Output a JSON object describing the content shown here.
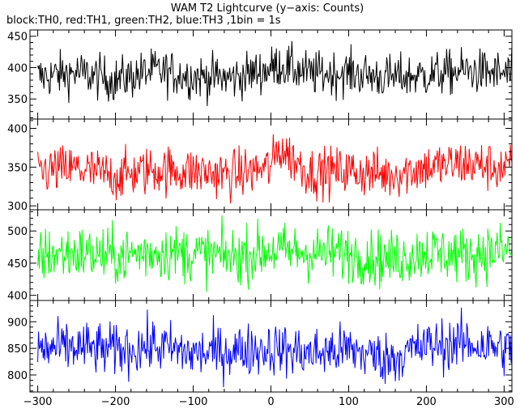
{
  "chart_data": {
    "type": "line",
    "title": "WAM T2 Lightcurve (y−axis: Counts)",
    "subtitle": "block:TH0, red:TH1, green:TH2, blue:TH3 ,1bin = 1s",
    "xlim": [
      -310,
      310
    ],
    "x_ticks": [
      -300,
      -200,
      -100,
      0,
      100,
      200,
      300
    ],
    "x_tick_labels": [
      "−300",
      "−200",
      "−100",
      "0",
      "100",
      "200",
      "300"
    ],
    "x_step": 1,
    "grid": false,
    "panels": [
      {
        "series": "TH0",
        "color": "#000000",
        "ylim": [
          318,
          460
        ],
        "y_ticks": [
          350,
          400,
          450
        ],
        "mean": 388,
        "spread": 18,
        "samples": [
          [
            -300,
            385
          ],
          [
            -250,
            392
          ],
          [
            -200,
            380
          ],
          [
            -150,
            395
          ],
          [
            -100,
            386
          ],
          [
            -50,
            383
          ],
          [
            0,
            398
          ],
          [
            10,
            405
          ],
          [
            50,
            390
          ],
          [
            100,
            392
          ],
          [
            150,
            384
          ],
          [
            200,
            388
          ],
          [
            250,
            395
          ],
          [
            300,
            390
          ]
        ]
      },
      {
        "series": "TH1",
        "color": "#ff0000",
        "ylim": [
          295,
          412
        ],
        "y_ticks": [
          300,
          350,
          400
        ],
        "mean": 345,
        "spread": 16,
        "samples": [
          [
            -300,
            345
          ],
          [
            -250,
            348
          ],
          [
            -200,
            338
          ],
          [
            -150,
            347
          ],
          [
            -100,
            344
          ],
          [
            -50,
            340
          ],
          [
            0,
            350
          ],
          [
            10,
            375
          ],
          [
            50,
            343
          ],
          [
            100,
            345
          ],
          [
            150,
            340
          ],
          [
            200,
            350
          ],
          [
            250,
            355
          ],
          [
            300,
            348
          ]
        ]
      },
      {
        "series": "TH2",
        "color": "#00ff00",
        "ylim": [
          392,
          533
        ],
        "y_ticks": [
          400,
          450,
          500
        ],
        "mean": 465,
        "spread": 22,
        "samples": [
          [
            -300,
            462
          ],
          [
            -250,
            466
          ],
          [
            -200,
            460
          ],
          [
            -150,
            468
          ],
          [
            -100,
            464
          ],
          [
            -50,
            460
          ],
          [
            0,
            470
          ],
          [
            50,
            466
          ],
          [
            100,
            465
          ],
          [
            150,
            455
          ],
          [
            200,
            468
          ],
          [
            250,
            462
          ],
          [
            300,
            470
          ]
        ]
      },
      {
        "series": "TH3",
        "color": "#0000ff",
        "ylim": [
          768,
          940
        ],
        "y_ticks": [
          800,
          850,
          900
        ],
        "mean": 850,
        "spread": 25,
        "samples": [
          [
            -300,
            848
          ],
          [
            -250,
            852
          ],
          [
            -200,
            846
          ],
          [
            -150,
            855
          ],
          [
            -100,
            840
          ],
          [
            -50,
            845
          ],
          [
            0,
            850
          ],
          [
            50,
            840
          ],
          [
            100,
            848
          ],
          [
            150,
            830
          ],
          [
            200,
            855
          ],
          [
            250,
            860
          ],
          [
            300,
            850
          ]
        ]
      }
    ]
  }
}
